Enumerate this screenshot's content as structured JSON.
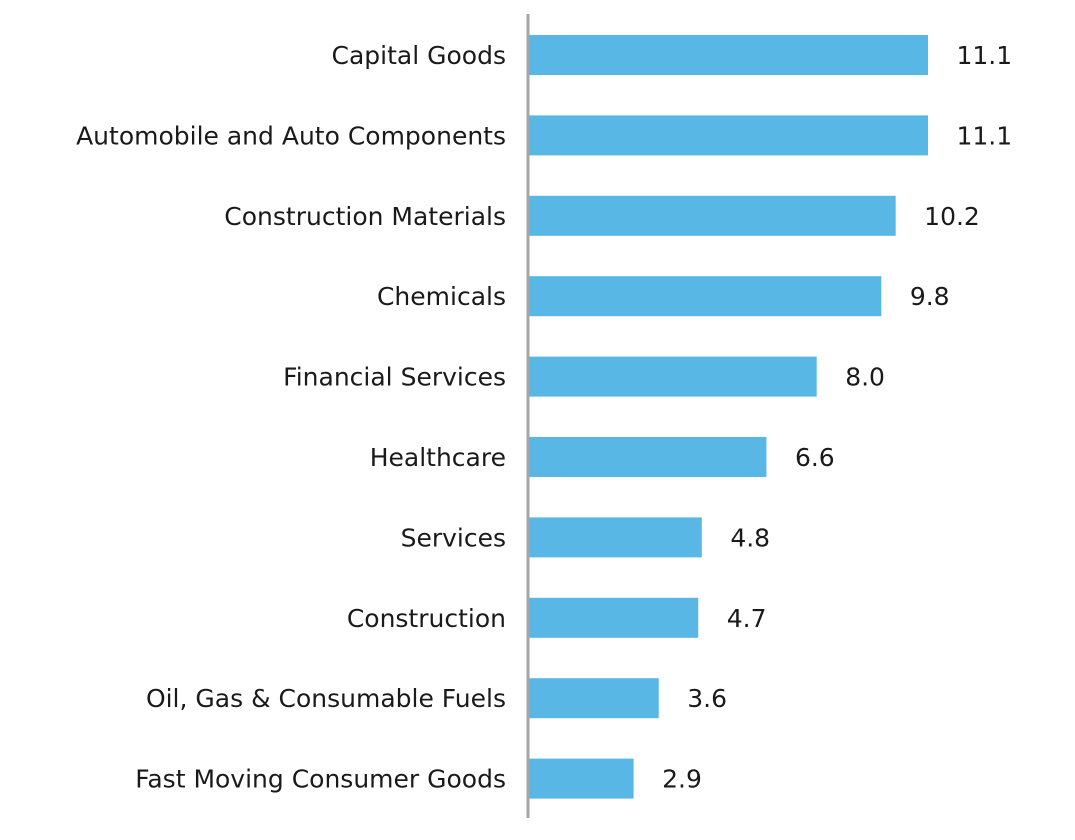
{
  "chart_data": {
    "type": "bar",
    "orientation": "horizontal",
    "categories": [
      "Capital Goods",
      "Automobile and Auto Components",
      "Construction Materials",
      "Chemicals",
      "Financial Services",
      "Healthcare",
      "Services",
      "Construction",
      "Oil, Gas & Consumable Fuels",
      "Fast Moving Consumer Goods"
    ],
    "values": [
      11.1,
      11.1,
      10.2,
      9.8,
      8.0,
      6.6,
      4.8,
      4.7,
      3.6,
      2.9
    ],
    "value_labels": [
      "11.1",
      "11.1",
      "10.2",
      "9.8",
      "8.0",
      "6.6",
      "4.8",
      "4.7",
      "3.6",
      "2.9"
    ],
    "title": "",
    "xlabel": "",
    "ylabel": "",
    "xlim": [
      0,
      12.5
    ],
    "grid": false,
    "legend": "none",
    "colors": {
      "bar": "#58b7e5",
      "axis": "#a6a6a6",
      "text": "#1a1a1a"
    }
  }
}
